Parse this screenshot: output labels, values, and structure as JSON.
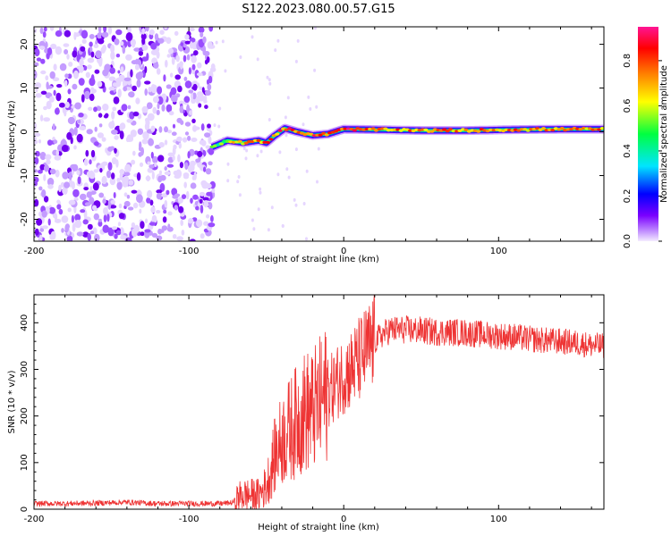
{
  "title": "S122.2023.080.00.57.G15",
  "chart_data": [
    {
      "type": "heatmap",
      "xlabel": "Height of straight line (km)",
      "ylabel": "Frequency (Hz)",
      "xlim": [
        -200,
        168
      ],
      "ylim": [
        -25,
        24
      ],
      "xticks": [
        -200,
        -100,
        0,
        100
      ],
      "yticks": [
        -20,
        -10,
        0,
        10,
        20
      ],
      "colorbar": {
        "label": "Normalized spectral amplitude",
        "range": [
          0.0,
          0.95
        ],
        "ticks": [
          "0.0",
          "0.2",
          "0.4",
          "0.6",
          "0.8"
        ],
        "ticks_values": [
          0.0,
          0.2,
          0.4,
          0.6,
          0.8
        ],
        "colormap": [
          "#f4ecff",
          "#7a00ff",
          "#0000ff",
          "#00e5ff",
          "#00ff40",
          "#ffff00",
          "#ff8000",
          "#ff0000",
          "#ff1493"
        ]
      },
      "signal_track": [
        {
          "x": -85,
          "freq": -3.5,
          "amp": 0.5
        },
        {
          "x": -75,
          "freq": -2.0,
          "amp": 0.6
        },
        {
          "x": -65,
          "freq": -2.5,
          "amp": 0.7
        },
        {
          "x": -55,
          "freq": -2.0,
          "amp": 0.75
        },
        {
          "x": -50,
          "freq": -2.5,
          "amp": 0.8
        },
        {
          "x": -45,
          "freq": -1.0,
          "amp": 0.8
        },
        {
          "x": -38,
          "freq": 0.8,
          "amp": 0.85
        },
        {
          "x": -30,
          "freq": 0.0,
          "amp": 0.85
        },
        {
          "x": -20,
          "freq": -0.8,
          "amp": 0.85
        },
        {
          "x": -10,
          "freq": -0.5,
          "amp": 0.85
        },
        {
          "x": 0,
          "freq": 0.6,
          "amp": 0.9
        },
        {
          "x": 20,
          "freq": 0.5,
          "amp": 0.8
        },
        {
          "x": 50,
          "freq": 0.3,
          "amp": 0.75
        },
        {
          "x": 80,
          "freq": 0.3,
          "amp": 0.75
        },
        {
          "x": 110,
          "freq": 0.5,
          "amp": 0.75
        },
        {
          "x": 140,
          "freq": 0.6,
          "amp": 0.75
        },
        {
          "x": 168,
          "freq": 0.6,
          "amp": 0.75
        }
      ],
      "noise_region_x": [
        -200,
        -84
      ],
      "color_signal": "#ff0000"
    },
    {
      "type": "line",
      "xlabel": "Height of straight line (km)",
      "ylabel": "SNR (10 * v/v)",
      "xlim": [
        -200,
        168
      ],
      "ylim": [
        0,
        460
      ],
      "xticks": [
        -200,
        -100,
        0,
        100
      ],
      "yticks": [
        0,
        100,
        200,
        300,
        400
      ],
      "color": "#ee3333",
      "series": [
        {
          "x": [
            -200,
            -180,
            -160,
            -140,
            -120,
            -100,
            -90,
            -80,
            -72,
            -66,
            -60,
            -55,
            -50,
            -45,
            -40,
            -35,
            -30,
            -25,
            -20,
            -15,
            -10,
            -5,
            0,
            5,
            10,
            15,
            20,
            25,
            30,
            40,
            50,
            60,
            70,
            80,
            90,
            100,
            110,
            120,
            130,
            140,
            150,
            160,
            168
          ],
          "values": [
            12,
            12,
            13,
            15,
            12,
            12,
            12,
            12,
            14,
            30,
            30,
            30,
            50,
            110,
            150,
            170,
            190,
            210,
            210,
            230,
            250,
            270,
            290,
            300,
            320,
            340,
            360,
            375,
            385,
            385,
            383,
            380,
            380,
            378,
            375,
            372,
            370,
            365,
            362,
            360,
            357,
            352,
            350
          ]
        }
      ]
    }
  ]
}
